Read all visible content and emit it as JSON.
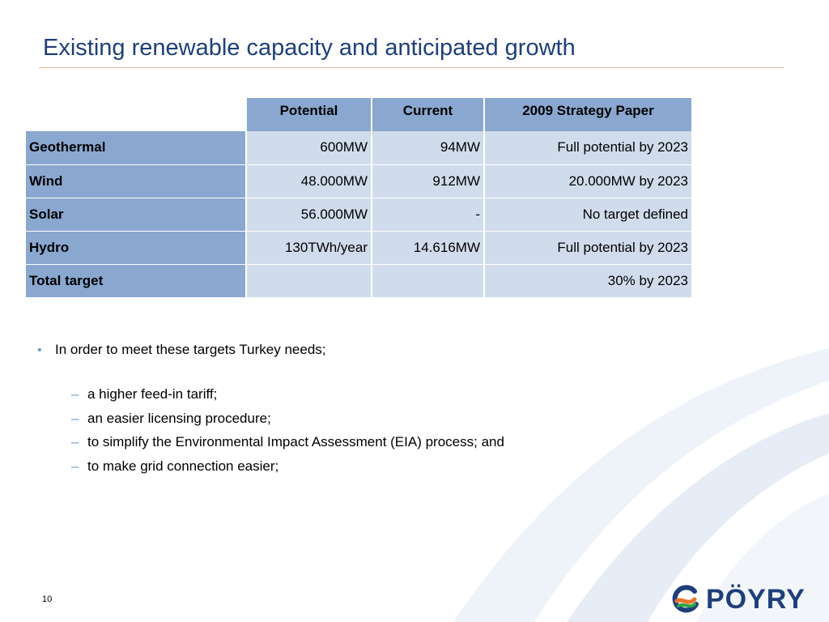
{
  "slide": {
    "title": "Existing renewable capacity and anticipated growth",
    "page_number": "10",
    "logo_text": "PÖYRY"
  },
  "table": {
    "headers": [
      "Potential",
      "Current",
      "2009 Strategy Paper"
    ],
    "rows": [
      {
        "label": "Geothermal",
        "potential": "600MW",
        "current": "94MW",
        "strategy": "Full potential by 2023"
      },
      {
        "label": "Wind",
        "potential": "48.000MW",
        "current": "912MW",
        "strategy": "20.000MW by 2023"
      },
      {
        "label": "Solar",
        "potential": "56.000MW",
        "current": "-",
        "strategy": "No target defined"
      },
      {
        "label": "Hydro",
        "potential": "130TWh/year",
        "current": "14.616MW",
        "strategy": "Full potential by 2023"
      },
      {
        "label": "Total target",
        "potential": "",
        "current": "",
        "strategy": "30% by 2023"
      }
    ]
  },
  "bullets": {
    "main": "In order to meet these targets Turkey needs;",
    "subitems": [
      "a higher feed-in tariff;",
      "an easier licensing procedure;",
      "to simplify the Environmental Impact Assessment (EIA) process; and",
      "to make grid connection easier;"
    ]
  },
  "colors": {
    "title": "#1f3f7a",
    "header_fill": "#8aa7cf",
    "cell_fill": "#d0dcec",
    "accent_rule": "#e3b89a"
  }
}
